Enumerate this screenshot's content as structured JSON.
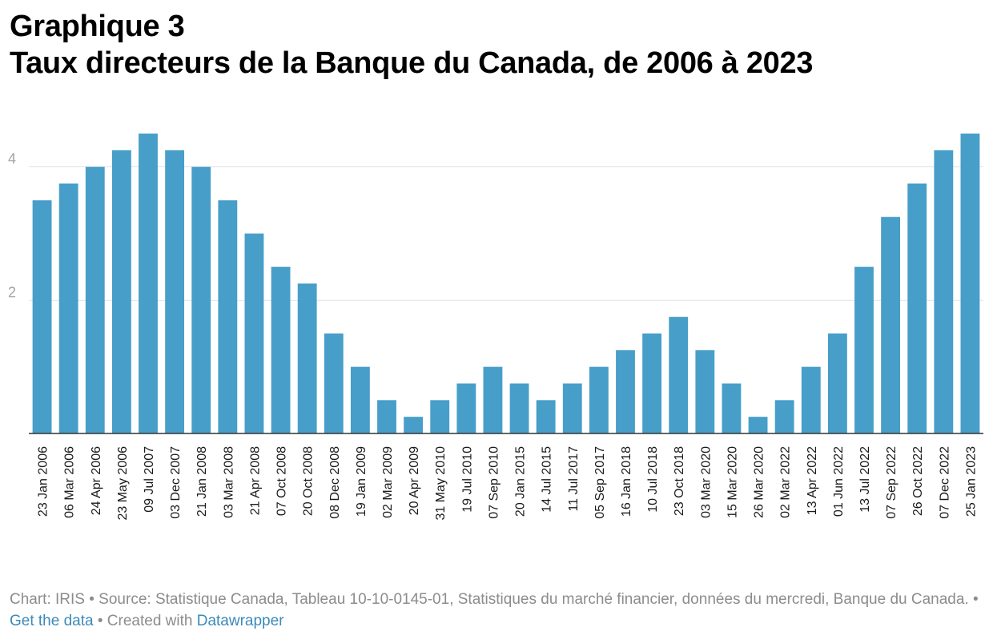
{
  "header": {
    "line1": "Graphique 3",
    "line2": "Taux directeurs de la Banque du Canada, de 2006 à 2023"
  },
  "footer": {
    "credit": "Chart: IRIS • Source: Statistique Canada, Tableau 10-10-0145-01, Statistiques du marché financier, données du mercredi, Banque du Canada. • ",
    "get_data": "Get the data",
    "created_with": " • Created with ",
    "datawrapper": "Datawrapper"
  },
  "colors": {
    "bar": "#479ec9",
    "grid": "#e2e2e2",
    "axis": "#333333"
  },
  "chart_data": {
    "type": "bar",
    "title": "Taux directeurs de la Banque du Canada, de 2006 à 2023",
    "xlabel": "",
    "ylabel": "",
    "ylim": [
      0,
      4.5
    ],
    "yticks": [
      2,
      4
    ],
    "grid": true,
    "categories": [
      "23 Jan 2006",
      "06 Mar 2006",
      "24 Apr 2006",
      "23 May 2006",
      "09 Jul 2007",
      "03 Dec 2007",
      "21 Jan 2008",
      "03 Mar 2008",
      "21 Apr 2008",
      "07 Oct 2008",
      "20 Oct 2008",
      "08 Dec 2008",
      "19 Jan 2009",
      "02 Mar 2009",
      "20 Apr 2009",
      "31 May 2010",
      "19 Jul 2010",
      "07 Sep 2010",
      "20 Jan 2015",
      "14 Jul 2015",
      "11 Jul 2017",
      "05 Sep 2017",
      "16 Jan 2018",
      "10 Jul 2018",
      "23 Oct 2018",
      "03 Mar 2020",
      "15 Mar 2020",
      "26 Mar 2020",
      "02 Mar 2022",
      "13 Apr 2022",
      "01 Jun 2022",
      "13 Jul 2022",
      "07 Sep 2022",
      "26 Oct 2022",
      "07 Dec 2022",
      "25 Jan 2023"
    ],
    "values": [
      3.5,
      3.75,
      4.0,
      4.25,
      4.5,
      4.25,
      4.0,
      3.5,
      3.0,
      2.5,
      2.25,
      1.5,
      1.0,
      0.5,
      0.25,
      0.5,
      0.75,
      1.0,
      0.75,
      0.5,
      0.75,
      1.0,
      1.25,
      1.5,
      1.75,
      1.25,
      0.75,
      0.25,
      0.5,
      1.0,
      1.5,
      2.5,
      3.25,
      3.75,
      4.25,
      4.5
    ]
  }
}
